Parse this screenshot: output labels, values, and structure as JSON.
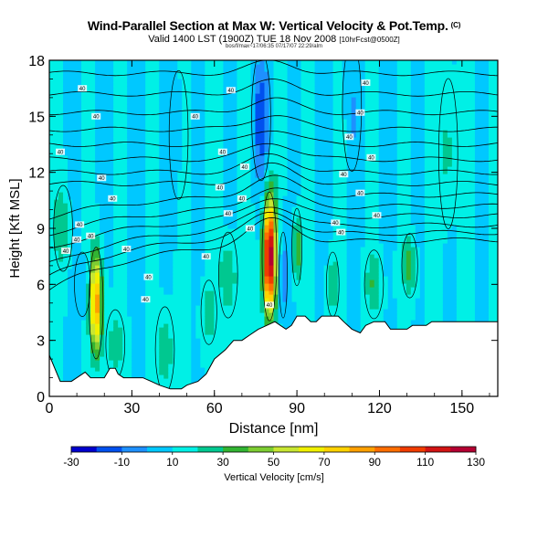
{
  "page": {
    "title": "Wind-Parallel Section at Max W: Vertical Velocity & Pot.Temp.",
    "title_mark": "(C)",
    "subtitle": "Valid 1400 LST (1900Z) TUE 18 Nov 2008",
    "subtitle_note": "[10hrFcst@0500Z]",
    "stamp": "bos/f/max~17/06:35 07/17/07 22:29/alm"
  },
  "chart_data": {
    "type": "heatmap",
    "title": "Wind-Parallel Section at Max W: Vertical Velocity & Pot.Temp.",
    "xlabel": "Distance [nm]",
    "ylabel": "Height [Kft MSL]",
    "xlim": [
      0,
      163
    ],
    "ylim": [
      0,
      18
    ],
    "xticks": [
      0,
      30,
      60,
      90,
      120,
      150
    ],
    "yticks": [
      0,
      3,
      6,
      9,
      12,
      15,
      18
    ],
    "colorbar": {
      "label": "Vertical Velocity [cm/s]",
      "levels": [
        -30,
        -20,
        -10,
        0,
        10,
        20,
        30,
        40,
        50,
        60,
        70,
        80,
        90,
        100,
        110,
        120,
        130
      ],
      "tick_labels": [
        "-30",
        "-10",
        "10",
        "30",
        "50",
        "70",
        "90",
        "110",
        "130"
      ],
      "colors": [
        "#0000cd",
        "#0050ee",
        "#1e90ff",
        "#00c8ff",
        "#00f0e6",
        "#00c890",
        "#32b432",
        "#7dcd32",
        "#c8e632",
        "#f0f000",
        "#ffd200",
        "#ffa000",
        "#ff6e00",
        "#f03c00",
        "#d21414",
        "#b40032"
      ]
    },
    "background_w": 10,
    "terrain": [
      [
        0,
        2.2
      ],
      [
        2,
        1.5
      ],
      [
        4,
        0.8
      ],
      [
        8,
        0.8
      ],
      [
        10,
        1.0
      ],
      [
        13,
        1.3
      ],
      [
        15,
        1.0
      ],
      [
        20,
        1.0
      ],
      [
        22,
        1.5
      ],
      [
        24,
        1.5
      ],
      [
        25,
        1.2
      ],
      [
        27,
        1.0
      ],
      [
        34,
        1.0
      ],
      [
        37,
        0.8
      ],
      [
        40,
        0.6
      ],
      [
        44,
        0.4
      ],
      [
        48,
        0.4
      ],
      [
        50,
        0.6
      ],
      [
        54,
        0.8
      ],
      [
        57,
        1.2
      ],
      [
        60,
        2.0
      ],
      [
        64,
        2.5
      ],
      [
        67,
        3.0
      ],
      [
        70,
        3.0
      ],
      [
        73,
        3.3
      ],
      [
        76,
        3.6
      ],
      [
        79,
        3.8
      ],
      [
        82,
        4.0
      ],
      [
        84,
        3.8
      ],
      [
        86,
        3.6
      ],
      [
        88,
        3.8
      ],
      [
        90,
        4.3
      ],
      [
        93,
        4.3
      ],
      [
        95,
        4.0
      ],
      [
        97,
        4.0
      ],
      [
        99,
        4.3
      ],
      [
        105,
        4.3
      ],
      [
        107,
        4.0
      ],
      [
        110,
        3.6
      ],
      [
        113,
        3.4
      ],
      [
        115,
        3.8
      ],
      [
        118,
        4.0
      ],
      [
        122,
        4.0
      ],
      [
        124,
        3.6
      ],
      [
        130,
        3.6
      ],
      [
        132,
        3.8
      ],
      [
        137,
        3.8
      ],
      [
        139,
        4.0
      ],
      [
        163,
        4.0
      ]
    ],
    "updrafts": [
      {
        "x": 17,
        "y": 5.0,
        "rx": 2.2,
        "ry": 2.6,
        "w": 80
      },
      {
        "x": 80,
        "y": 7.5,
        "rx": 2.3,
        "ry": 3.0,
        "w": 125
      },
      {
        "x": 90,
        "y": 8.0,
        "rx": 1.6,
        "ry": 1.8,
        "w": 35
      },
      {
        "x": 65,
        "y": 6.5,
        "rx": 3.0,
        "ry": 2.0,
        "w": 25
      },
      {
        "x": 131,
        "y": 7.0,
        "rx": 2.5,
        "ry": 1.5,
        "w": 28
      },
      {
        "x": 118,
        "y": 6.0,
        "rx": 3.0,
        "ry": 1.6,
        "w": 22
      },
      {
        "x": 103,
        "y": 6.0,
        "rx": 2.0,
        "ry": 1.5,
        "w": 22
      },
      {
        "x": 24,
        "y": 2.8,
        "rx": 3.0,
        "ry": 1.6,
        "w": 20
      },
      {
        "x": 42,
        "y": 2.5,
        "rx": 3.0,
        "ry": 2.0,
        "w": 22
      },
      {
        "x": 58,
        "y": 4.5,
        "rx": 2.5,
        "ry": 1.5,
        "w": 22
      },
      {
        "x": 145,
        "y": 13.0,
        "rx": 3.0,
        "ry": 3.5,
        "w": 20
      },
      {
        "x": 5,
        "y": 9.0,
        "rx": 3.0,
        "ry": 2.0,
        "w": 20
      }
    ],
    "downdrafts": [
      {
        "x": 77,
        "y": 15.0,
        "rx": 3.0,
        "ry": 3.0,
        "w": -22
      },
      {
        "x": 85,
        "y": 6.5,
        "rx": 1.3,
        "ry": 2.0,
        "w": -18
      },
      {
        "x": 12,
        "y": 6.0,
        "rx": 2.5,
        "ry": 1.5,
        "w": -6
      },
      {
        "x": 110,
        "y": 15.5,
        "rx": 3.0,
        "ry": 3.0,
        "w": -4
      },
      {
        "x": 47,
        "y": 14.0,
        "rx": 3.0,
        "ry": 3.0,
        "w": -4
      }
    ],
    "theta_contours": {
      "label_value": "40",
      "heights_left": [
        7.2,
        7.6,
        8.0,
        8.5,
        9.0,
        9.6,
        10.2,
        10.8,
        11.5,
        12.3,
        13.1,
        14.0,
        15.0,
        16.1,
        17.2
      ],
      "peak_x": 81,
      "peak_lift": 1.3
    },
    "label_positions": [
      {
        "x": 6,
        "y": 7.8
      },
      {
        "x": 10,
        "y": 8.4
      },
      {
        "x": 15,
        "y": 8.6
      },
      {
        "x": 28,
        "y": 7.9
      },
      {
        "x": 36,
        "y": 6.4
      },
      {
        "x": 35,
        "y": 5.2
      },
      {
        "x": 57,
        "y": 7.5
      },
      {
        "x": 73,
        "y": 9.0
      },
      {
        "x": 65,
        "y": 9.8
      },
      {
        "x": 70,
        "y": 10.6
      },
      {
        "x": 62,
        "y": 11.2
      },
      {
        "x": 71,
        "y": 12.3
      },
      {
        "x": 63,
        "y": 13.1
      },
      {
        "x": 53,
        "y": 15.0
      },
      {
        "x": 66,
        "y": 16.4
      },
      {
        "x": 12,
        "y": 16.5
      },
      {
        "x": 17,
        "y": 15.0
      },
      {
        "x": 4,
        "y": 13.1
      },
      {
        "x": 19,
        "y": 11.7
      },
      {
        "x": 23,
        "y": 10.6
      },
      {
        "x": 11,
        "y": 9.2
      },
      {
        "x": 104,
        "y": 9.3
      },
      {
        "x": 106,
        "y": 8.8
      },
      {
        "x": 119,
        "y": 9.7
      },
      {
        "x": 113,
        "y": 10.9
      },
      {
        "x": 107,
        "y": 11.9
      },
      {
        "x": 117,
        "y": 12.8
      },
      {
        "x": 109,
        "y": 13.9
      },
      {
        "x": 113,
        "y": 15.2
      },
      {
        "x": 115,
        "y": 16.8
      },
      {
        "x": 80,
        "y": 4.9
      }
    ]
  }
}
